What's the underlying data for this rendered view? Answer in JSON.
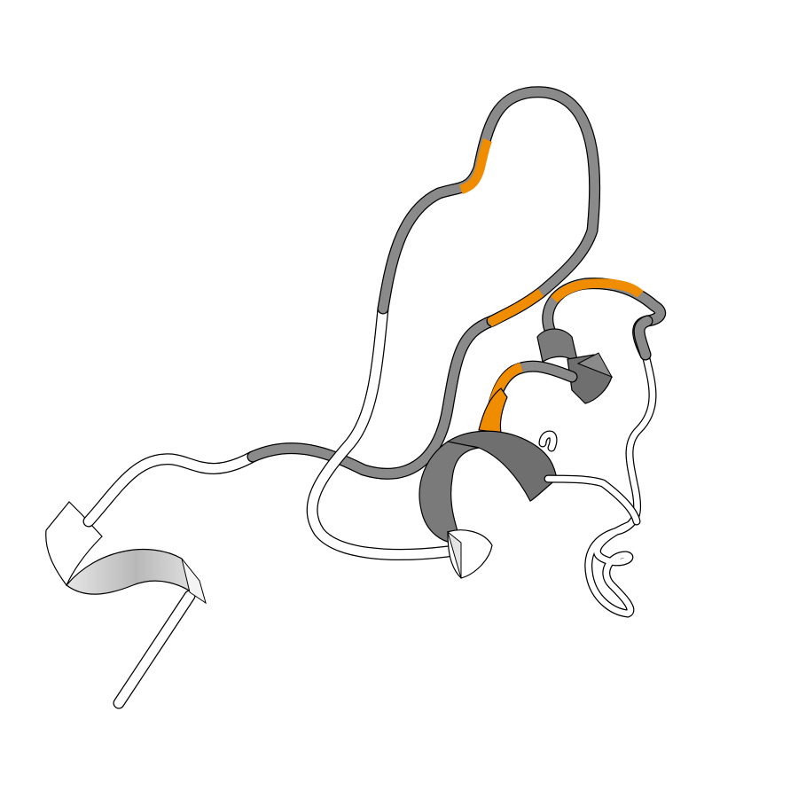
{
  "scene": {
    "kind": "protein-cartoon",
    "background": "#ffffff"
  },
  "palette": {
    "coil_white": "#ffffff",
    "coil_gray": "#8a8a8a",
    "highlight_orange": "#f08c00",
    "helix_gray": "#7a7a7a",
    "helix_shade": "#c8c8c8",
    "outline": "#000000"
  }
}
